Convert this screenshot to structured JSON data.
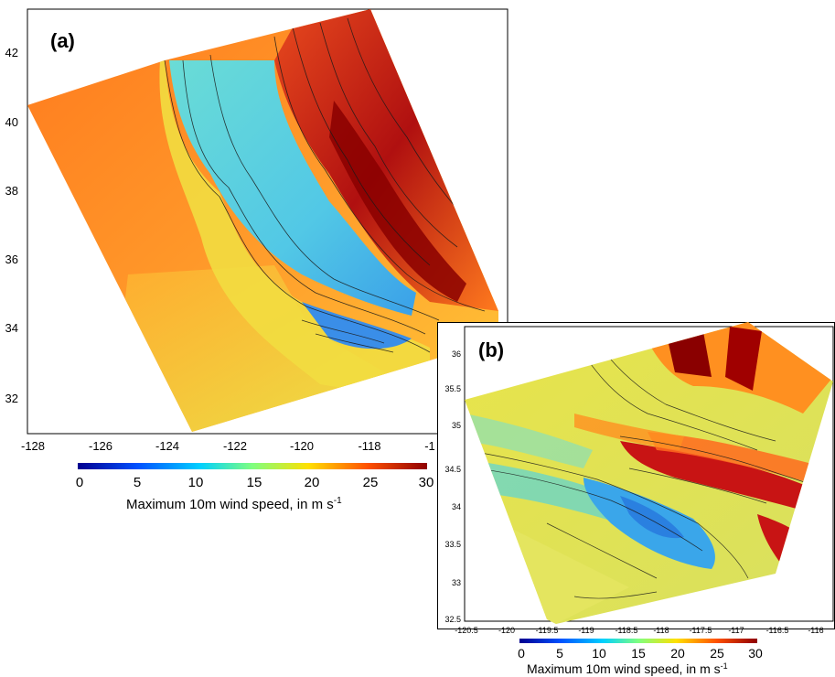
{
  "panels": [
    {
      "tag": "(a)",
      "x_ticks": [
        "-128",
        "-126",
        "-124",
        "-122",
        "-120",
        "-118",
        "-1"
      ],
      "y_ticks": [
        "42",
        "40",
        "38",
        "36",
        "34",
        "32"
      ],
      "colorbar": {
        "ticks": [
          "0",
          "5",
          "10",
          "15",
          "20",
          "25",
          "30"
        ],
        "title": "Maximum 10m wind speed, in m s",
        "title_sup": "-1",
        "colors": [
          "#00008f",
          "#0050ff",
          "#00d0ff",
          "#7fff7f",
          "#ffe000",
          "#ff5000",
          "#8f0000"
        ]
      }
    },
    {
      "tag": "(b)",
      "x_ticks": [
        "-120.5",
        "-120",
        "-119.5",
        "-119",
        "-118.5",
        "-118",
        "-117.5",
        "-117",
        "-116.5",
        "-116"
      ],
      "y_ticks": [
        "36",
        "35.5",
        "35",
        "34.5",
        "34",
        "33.5",
        "33",
        "32.5"
      ],
      "colorbar": {
        "ticks": [
          "0",
          "5",
          "10",
          "15",
          "20",
          "25",
          "30"
        ],
        "title": "Maximum 10m wind speed, in m s",
        "title_sup": "-1",
        "colors": [
          "#00008f",
          "#0050ff",
          "#00d0ff",
          "#7fff7f",
          "#ffe000",
          "#ff5000",
          "#8f0000"
        ]
      }
    }
  ],
  "palette": {
    "ocean": "#ff8a2a",
    "ocean_light": "#ffb030",
    "coast_yellow": "#f5e23a",
    "valley_cyan": "#5ad6e6",
    "valley_blue": "#3aa0e8",
    "mountain_red": "#c81414",
    "mountain_dark": "#7a0000",
    "contour": "#1a1a1a"
  }
}
